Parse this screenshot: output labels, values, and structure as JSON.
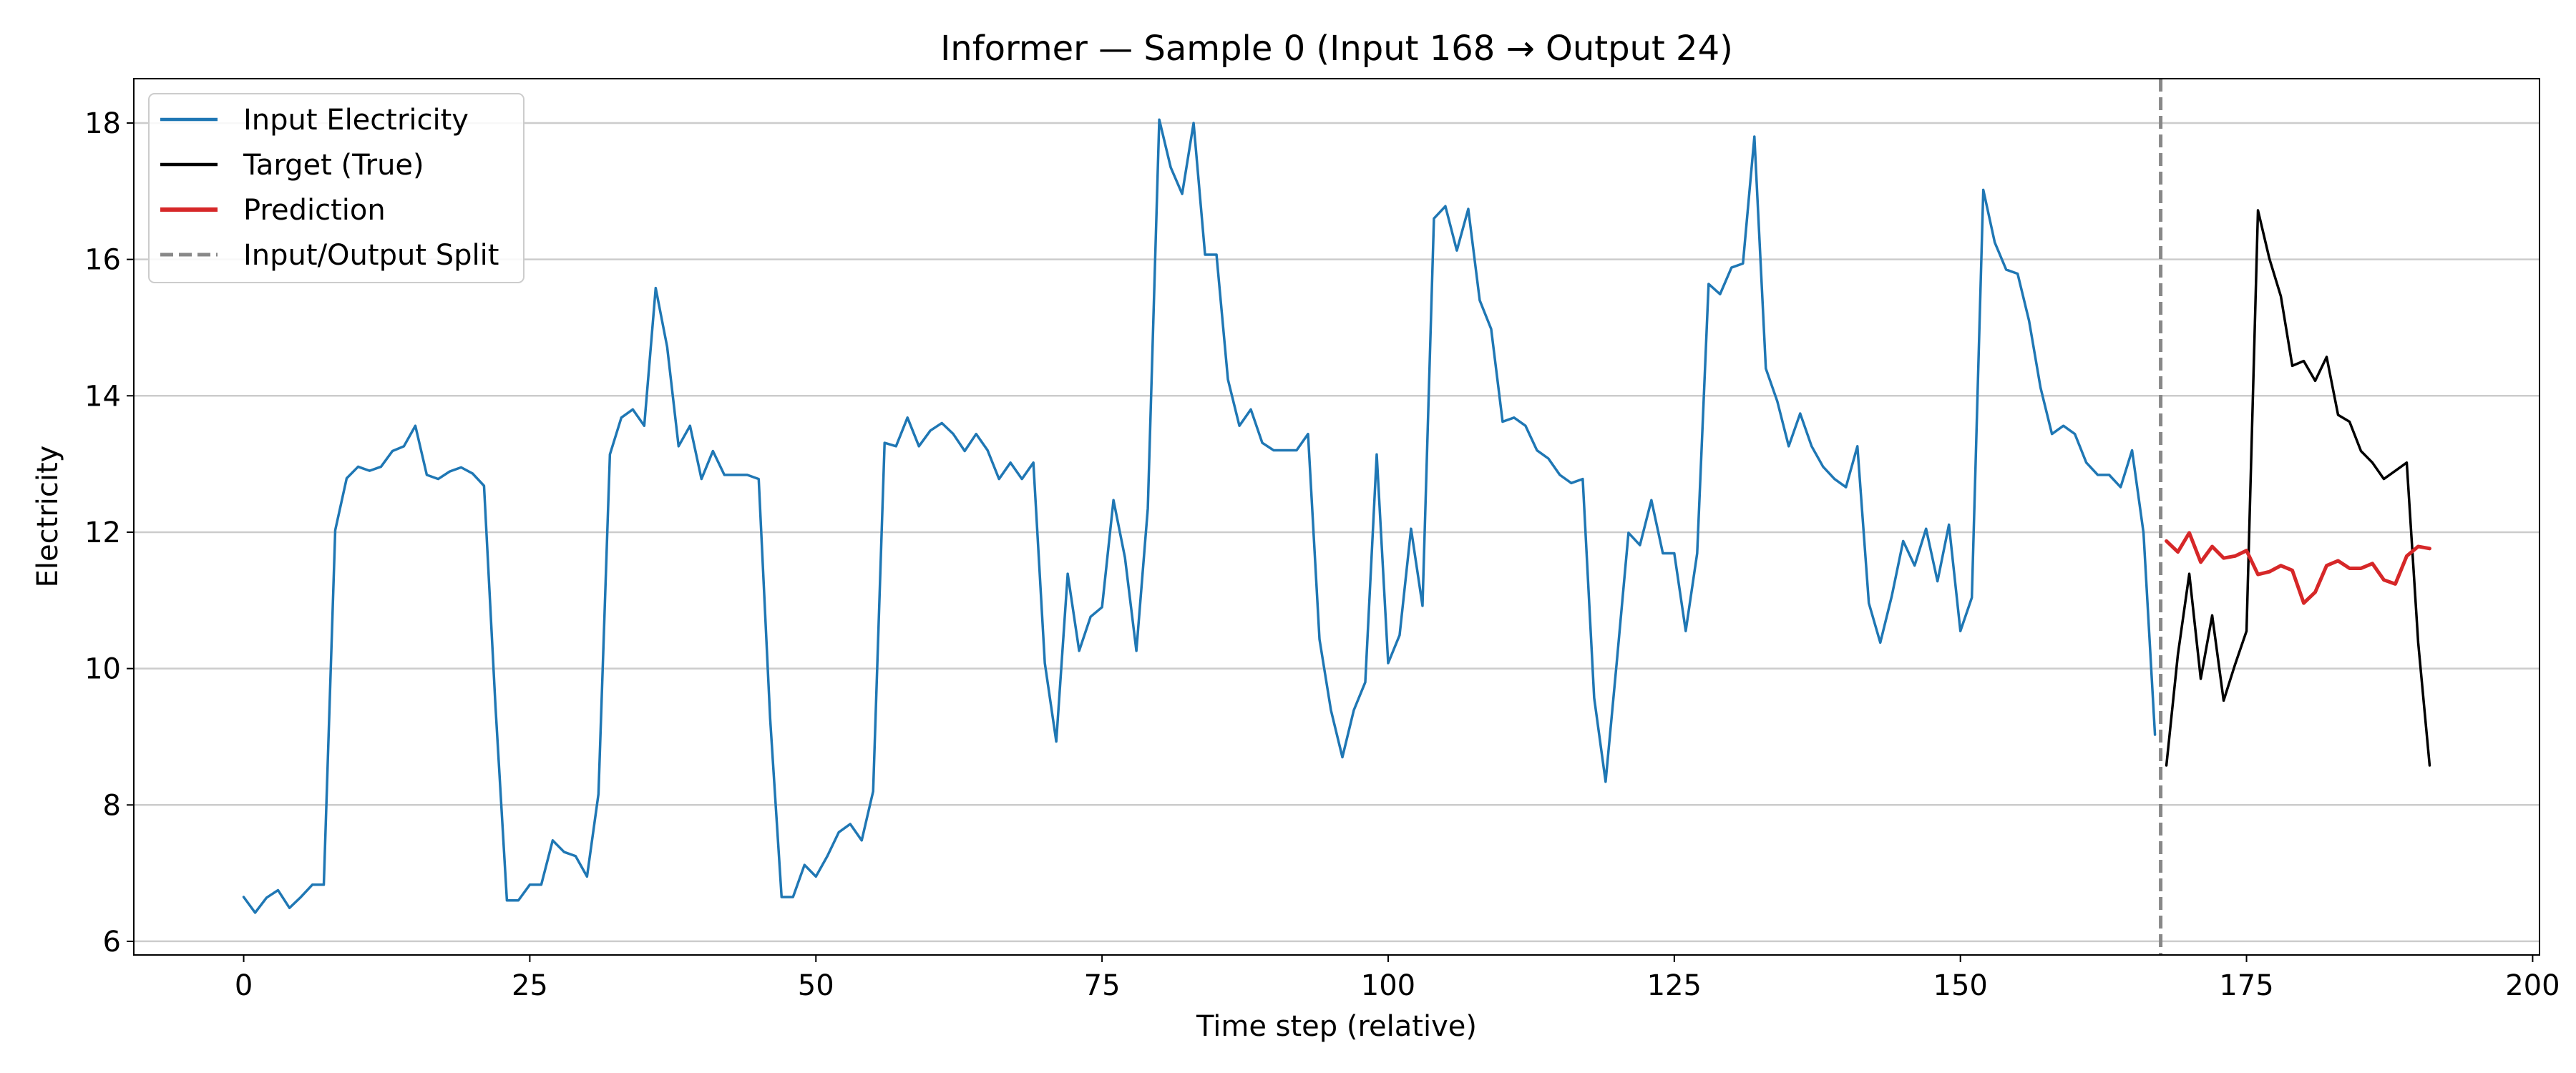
{
  "chart_data": {
    "type": "line",
    "title": "Informer — Sample 0 (Input 168 → Output 24)",
    "xlabel": "Time step (relative)",
    "ylabel": "Electricity",
    "xlim": [
      -9.6,
      200.6
    ],
    "ylim": [
      5.8,
      18.65
    ],
    "xticks": [
      0,
      25,
      50,
      75,
      100,
      125,
      150,
      175,
      200
    ],
    "yticks": [
      6,
      8,
      10,
      12,
      14,
      16,
      18
    ],
    "grid": "y",
    "legend_position": "top-left",
    "split_x": 167.5,
    "series": [
      {
        "name": "Input Electricity",
        "color": "#1f77b4",
        "style": "solid",
        "x_start": 0,
        "values": [
          6.65,
          6.42,
          6.64,
          6.75,
          6.49,
          6.65,
          6.83,
          6.83,
          12.03,
          12.79,
          12.96,
          12.9,
          12.96,
          13.19,
          13.26,
          13.56,
          12.84,
          12.78,
          12.89,
          12.95,
          12.86,
          12.68,
          9.45,
          6.6,
          6.6,
          6.83,
          6.83,
          7.48,
          7.31,
          7.25,
          6.95,
          8.16,
          13.14,
          13.68,
          13.8,
          13.56,
          15.58,
          14.72,
          13.26,
          13.56,
          12.78,
          13.19,
          12.84,
          12.84,
          12.84,
          12.78,
          9.27,
          6.65,
          6.65,
          7.12,
          6.95,
          7.25,
          7.6,
          7.72,
          7.48,
          8.2,
          13.31,
          13.26,
          13.68,
          13.26,
          13.49,
          13.6,
          13.44,
          13.19,
          13.44,
          13.2,
          12.78,
          13.02,
          12.78,
          13.02,
          10.08,
          8.93,
          11.39,
          10.26,
          10.76,
          10.9,
          12.47,
          11.63,
          10.26,
          12.35,
          18.05,
          17.35,
          16.96,
          18.0,
          16.07,
          16.07,
          14.24,
          13.56,
          13.8,
          13.31,
          13.2,
          13.2,
          13.2,
          13.44,
          10.43,
          9.39,
          8.7,
          9.39,
          9.8,
          13.14,
          10.08,
          10.49,
          12.05,
          10.92,
          16.6,
          16.78,
          16.13,
          16.74,
          15.4,
          14.98,
          13.62,
          13.68,
          13.56,
          13.2,
          13.08,
          12.84,
          12.72,
          12.78,
          9.57,
          8.34,
          10.14,
          11.99,
          11.81,
          12.47,
          11.69,
          11.69,
          10.55,
          11.69,
          15.64,
          15.49,
          15.88,
          15.94,
          17.8,
          14.4,
          13.92,
          13.26,
          13.74,
          13.26,
          12.96,
          12.78,
          12.66,
          13.26,
          10.96,
          10.38,
          11.06,
          11.87,
          11.51,
          12.05,
          11.28,
          12.11,
          10.55,
          11.04,
          17.02,
          16.25,
          15.85,
          15.79,
          15.1,
          14.12,
          13.44,
          13.56,
          13.44,
          13.02,
          12.84,
          12.84,
          12.66,
          13.2,
          11.99,
          9.03
        ]
      },
      {
        "name": "Target (True)",
        "color": "#000000",
        "style": "solid",
        "x_start": 168,
        "values": [
          8.58,
          10.2,
          11.39,
          9.85,
          10.78,
          9.53,
          10.06,
          10.55,
          16.72,
          16.01,
          15.46,
          14.44,
          14.51,
          14.22,
          14.57,
          13.72,
          13.62,
          13.19,
          13.02,
          12.78,
          12.9,
          13.02,
          10.38,
          8.58
        ]
      },
      {
        "name": "Prediction",
        "color": "#d62728",
        "style": "solid",
        "x_start": 168,
        "values": [
          11.87,
          11.71,
          11.99,
          11.56,
          11.79,
          11.62,
          11.65,
          11.73,
          11.38,
          11.42,
          11.51,
          11.44,
          10.96,
          11.12,
          11.51,
          11.58,
          11.47,
          11.47,
          11.54,
          11.3,
          11.24,
          11.65,
          11.79,
          11.76
        ]
      },
      {
        "name": "Input/Output Split",
        "color": "#888888",
        "style": "dashed"
      }
    ]
  }
}
